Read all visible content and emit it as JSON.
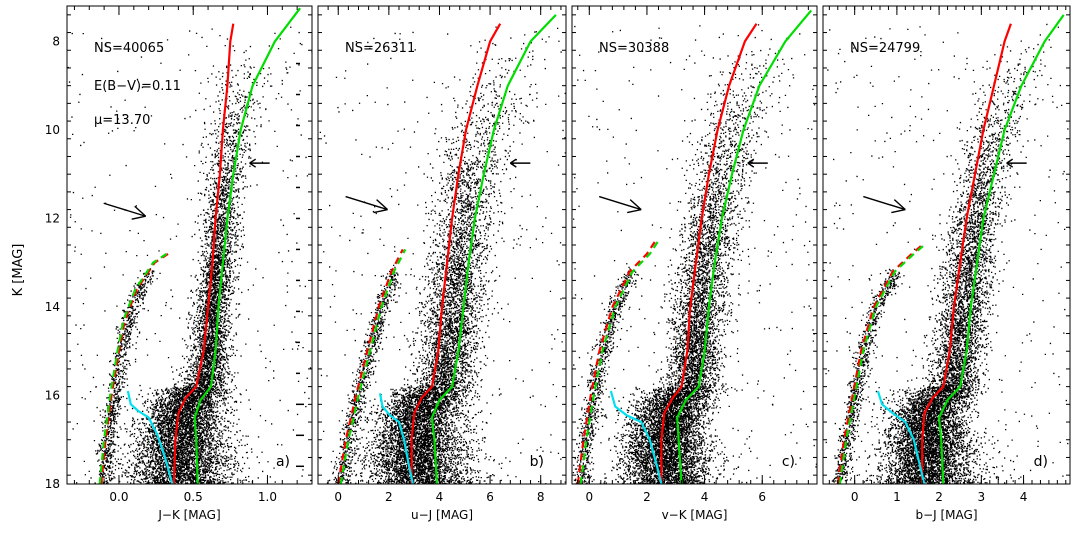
{
  "figure": {
    "ylabel": "K [MAG]",
    "ylim": [
      18,
      7.2
    ],
    "yticks": [
      8,
      10,
      12,
      14,
      16,
      18
    ]
  },
  "chart_data": [
    {
      "type": "scatter",
      "panel_label": "a)",
      "ns_text": "NS=40065",
      "ebv_text": "E(B−V)=0.11",
      "mu_text": "μ=13.70",
      "xlabel": "J−K [MAG]",
      "xlim": [
        -0.35,
        1.3
      ],
      "xticks": [
        0.0,
        0.5,
        1.0
      ],
      "xtick_labels": [
        "0.0",
        "0.5",
        "1.0"
      ],
      "series": [
        {
          "name": "RGB ridge (red)",
          "color": "#ff0000",
          "points": [
            [
              0.37,
              18.0
            ],
            [
              0.38,
              17.0
            ],
            [
              0.4,
              16.4
            ],
            [
              0.45,
              16.05
            ],
            [
              0.52,
              15.8
            ],
            [
              0.57,
              15.0
            ],
            [
              0.6,
              14.0
            ],
            [
              0.63,
              13.0
            ],
            [
              0.65,
              12.0
            ],
            [
              0.68,
              11.0
            ],
            [
              0.7,
              10.0
            ],
            [
              0.73,
              9.0
            ],
            [
              0.75,
              8.0
            ],
            [
              0.77,
              7.6
            ]
          ]
        },
        {
          "name": "RGB ridge (green)",
          "color": "#00dd00",
          "points": [
            [
              0.53,
              18.0
            ],
            [
              0.52,
              17.0
            ],
            [
              0.51,
              16.5
            ],
            [
              0.55,
              16.1
            ],
            [
              0.62,
              15.8
            ],
            [
              0.65,
              15.0
            ],
            [
              0.67,
              14.0
            ],
            [
              0.7,
              13.0
            ],
            [
              0.73,
              12.0
            ],
            [
              0.77,
              11.0
            ],
            [
              0.82,
              10.0
            ],
            [
              0.9,
              9.0
            ],
            [
              1.05,
              8.0
            ],
            [
              1.22,
              7.25
            ]
          ]
        },
        {
          "name": "HB red (dashed)",
          "color": "#ff0000",
          "dashed": true,
          "points": [
            [
              -0.12,
              18.0
            ],
            [
              -0.09,
              17.0
            ],
            [
              -0.05,
              16.0
            ],
            [
              0.0,
              15.0
            ],
            [
              0.04,
              14.3
            ],
            [
              0.12,
              13.6
            ],
            [
              0.24,
              13.0
            ],
            [
              0.33,
              12.8
            ]
          ]
        },
        {
          "name": "HB green (dashed)",
          "color": "#00dd00",
          "dashed": true,
          "points": [
            [
              -0.13,
              18.0
            ],
            [
              -0.1,
              17.0
            ],
            [
              -0.06,
              16.0
            ],
            [
              -0.01,
              15.0
            ],
            [
              0.03,
              14.3
            ],
            [
              0.11,
              13.6
            ],
            [
              0.23,
              13.0
            ],
            [
              0.32,
              12.8
            ]
          ]
        },
        {
          "name": "Subgiant (cyan)",
          "color": "#00e0f0",
          "points": [
            [
              0.06,
              15.9
            ],
            [
              0.08,
              16.2
            ],
            [
              0.13,
              16.35
            ],
            [
              0.2,
              16.5
            ],
            [
              0.26,
              16.9
            ],
            [
              0.31,
              17.4
            ],
            [
              0.36,
              18.0
            ]
          ]
        }
      ],
      "arrow_big": [
        0.18,
        11.95
      ],
      "arrow_small": [
        0.88,
        10.75
      ]
    },
    {
      "type": "scatter",
      "panel_label": "b)",
      "ns_text": "NS=26311",
      "xlabel": "u−J [MAG]",
      "xlim": [
        -0.8,
        9.0
      ],
      "xticks": [
        0,
        2,
        4,
        6,
        8
      ],
      "xtick_labels": [
        "0",
        "2",
        "4",
        "6",
        "8"
      ],
      "series": [
        {
          "name": "RGB ridge (red)",
          "color": "#ff0000",
          "points": [
            [
              2.9,
              18.0
            ],
            [
              2.9,
              17.0
            ],
            [
              3.0,
              16.4
            ],
            [
              3.3,
              16.05
            ],
            [
              3.7,
              15.8
            ],
            [
              3.95,
              15.0
            ],
            [
              4.1,
              14.0
            ],
            [
              4.3,
              13.0
            ],
            [
              4.5,
              12.0
            ],
            [
              4.75,
              11.0
            ],
            [
              5.05,
              10.0
            ],
            [
              5.5,
              9.0
            ],
            [
              6.0,
              8.0
            ],
            [
              6.4,
              7.6
            ]
          ]
        },
        {
          "name": "RGB ridge (green)",
          "color": "#00dd00",
          "points": [
            [
              3.9,
              18.0
            ],
            [
              3.8,
              17.0
            ],
            [
              3.7,
              16.5
            ],
            [
              4.0,
              16.1
            ],
            [
              4.5,
              15.8
            ],
            [
              4.75,
              15.0
            ],
            [
              4.95,
              14.0
            ],
            [
              5.15,
              13.0
            ],
            [
              5.4,
              12.0
            ],
            [
              5.75,
              11.0
            ],
            [
              6.15,
              10.0
            ],
            [
              6.7,
              9.0
            ],
            [
              7.6,
              8.0
            ],
            [
              8.6,
              7.4
            ]
          ]
        },
        {
          "name": "HB red (dashed)",
          "color": "#ff0000",
          "dashed": true,
          "points": [
            [
              0.0,
              18.0
            ],
            [
              0.3,
              17.0
            ],
            [
              0.7,
              16.0
            ],
            [
              1.15,
              15.0
            ],
            [
              1.6,
              14.0
            ],
            [
              2.1,
              13.2
            ],
            [
              2.55,
              12.7
            ]
          ]
        },
        {
          "name": "HB green (dashed)",
          "color": "#00dd00",
          "dashed": true,
          "points": [
            [
              0.1,
              18.0
            ],
            [
              0.4,
              17.0
            ],
            [
              0.8,
              16.0
            ],
            [
              1.25,
              15.0
            ],
            [
              1.7,
              14.0
            ],
            [
              2.2,
              13.2
            ],
            [
              2.65,
              12.7
            ]
          ]
        },
        {
          "name": "Subgiant (cyan)",
          "color": "#00e0f0",
          "points": [
            [
              1.65,
              15.95
            ],
            [
              1.75,
              16.25
            ],
            [
              2.05,
              16.45
            ],
            [
              2.4,
              16.6
            ],
            [
              2.6,
              17.0
            ],
            [
              2.8,
              17.6
            ],
            [
              2.95,
              18.0
            ]
          ]
        }
      ],
      "arrow_big": [
        1.95,
        11.8
      ],
      "arrow_small": [
        6.8,
        10.75
      ]
    },
    {
      "type": "scatter",
      "panel_label": "c)",
      "ns_text": "NS=30388",
      "xlabel": "v−K [MAG]",
      "xlim": [
        -0.6,
        7.9
      ],
      "xticks": [
        0,
        2,
        4,
        6
      ],
      "xtick_labels": [
        "0",
        "2",
        "4",
        "6"
      ],
      "series": [
        {
          "name": "RGB ridge (red)",
          "color": "#ff0000",
          "points": [
            [
              2.5,
              18.0
            ],
            [
              2.5,
              17.0
            ],
            [
              2.6,
              16.4
            ],
            [
              2.9,
              16.05
            ],
            [
              3.2,
              15.8
            ],
            [
              3.4,
              15.0
            ],
            [
              3.5,
              14.0
            ],
            [
              3.7,
              13.0
            ],
            [
              3.9,
              12.0
            ],
            [
              4.15,
              11.0
            ],
            [
              4.45,
              10.0
            ],
            [
              4.85,
              9.0
            ],
            [
              5.4,
              8.0
            ],
            [
              5.8,
              7.6
            ]
          ]
        },
        {
          "name": "RGB ridge (green)",
          "color": "#00dd00",
          "points": [
            [
              3.2,
              18.0
            ],
            [
              3.1,
              17.0
            ],
            [
              3.05,
              16.5
            ],
            [
              3.35,
              16.1
            ],
            [
              3.8,
              15.8
            ],
            [
              4.0,
              15.0
            ],
            [
              4.15,
              14.0
            ],
            [
              4.35,
              13.0
            ],
            [
              4.6,
              12.0
            ],
            [
              4.95,
              11.0
            ],
            [
              5.35,
              10.0
            ],
            [
              5.9,
              9.0
            ],
            [
              6.8,
              8.0
            ],
            [
              7.7,
              7.3
            ]
          ]
        },
        {
          "name": "HB red (dashed)",
          "color": "#ff0000",
          "dashed": true,
          "points": [
            [
              -0.4,
              18.0
            ],
            [
              -0.2,
              17.0
            ],
            [
              0.05,
              16.0
            ],
            [
              0.35,
              15.0
            ],
            [
              0.8,
              14.0
            ],
            [
              1.4,
              13.2
            ],
            [
              2.0,
              12.8
            ],
            [
              2.3,
              12.5
            ]
          ]
        },
        {
          "name": "HB green (dashed)",
          "color": "#00dd00",
          "dashed": true,
          "points": [
            [
              -0.3,
              18.0
            ],
            [
              -0.1,
              17.0
            ],
            [
              0.15,
              16.0
            ],
            [
              0.45,
              15.0
            ],
            [
              0.9,
              14.0
            ],
            [
              1.5,
              13.2
            ],
            [
              2.1,
              12.8
            ],
            [
              2.4,
              12.5
            ]
          ]
        },
        {
          "name": "Subgiant (cyan)",
          "color": "#00e0f0",
          "points": [
            [
              0.75,
              15.9
            ],
            [
              0.9,
              16.25
            ],
            [
              1.3,
              16.45
            ],
            [
              1.8,
              16.6
            ],
            [
              2.1,
              17.0
            ],
            [
              2.35,
              17.6
            ],
            [
              2.5,
              18.0
            ]
          ]
        }
      ],
      "arrow_big": [
        1.8,
        11.8
      ],
      "arrow_small": [
        5.5,
        10.75
      ]
    },
    {
      "type": "scatter",
      "panel_label": "d)",
      "ns_text": "NS=24799",
      "xlabel": "b−J [MAG]",
      "xlim": [
        -0.75,
        5.1
      ],
      "xticks": [
        0,
        1,
        2,
        3,
        4
      ],
      "xtick_labels": [
        "0",
        "1",
        "2",
        "3",
        "4"
      ],
      "series": [
        {
          "name": "RGB ridge (red)",
          "color": "#ff0000",
          "points": [
            [
              1.6,
              18.0
            ],
            [
              1.6,
              17.0
            ],
            [
              1.65,
              16.4
            ],
            [
              1.85,
              16.05
            ],
            [
              2.1,
              15.8
            ],
            [
              2.25,
              15.0
            ],
            [
              2.35,
              14.0
            ],
            [
              2.5,
              13.0
            ],
            [
              2.65,
              12.0
            ],
            [
              2.85,
              11.0
            ],
            [
              3.05,
              10.0
            ],
            [
              3.3,
              9.0
            ],
            [
              3.55,
              8.0
            ],
            [
              3.7,
              7.6
            ]
          ]
        },
        {
          "name": "RGB ridge (green)",
          "color": "#00dd00",
          "points": [
            [
              2.1,
              18.0
            ],
            [
              2.05,
              17.0
            ],
            [
              2.0,
              16.5
            ],
            [
              2.2,
              16.1
            ],
            [
              2.5,
              15.8
            ],
            [
              2.65,
              15.0
            ],
            [
              2.75,
              14.0
            ],
            [
              2.9,
              13.0
            ],
            [
              3.05,
              12.0
            ],
            [
              3.3,
              11.0
            ],
            [
              3.55,
              10.0
            ],
            [
              3.95,
              9.0
            ],
            [
              4.5,
              8.0
            ],
            [
              4.95,
              7.4
            ]
          ]
        },
        {
          "name": "HB red (dashed)",
          "color": "#ff0000",
          "dashed": true,
          "points": [
            [
              -0.4,
              18.0
            ],
            [
              -0.25,
              17.0
            ],
            [
              -0.05,
              16.0
            ],
            [
              0.15,
              15.0
            ],
            [
              0.45,
              14.0
            ],
            [
              0.9,
              13.2
            ],
            [
              1.35,
              12.8
            ],
            [
              1.6,
              12.6
            ]
          ]
        },
        {
          "name": "HB green (dashed)",
          "color": "#00dd00",
          "dashed": true,
          "points": [
            [
              -0.35,
              18.0
            ],
            [
              -0.2,
              17.0
            ],
            [
              0.0,
              16.0
            ],
            [
              0.2,
              15.0
            ],
            [
              0.5,
              14.0
            ],
            [
              0.95,
              13.2
            ],
            [
              1.4,
              12.8
            ],
            [
              1.65,
              12.6
            ]
          ]
        },
        {
          "name": "Subgiant (cyan)",
          "color": "#00e0f0",
          "points": [
            [
              0.55,
              15.9
            ],
            [
              0.65,
              16.2
            ],
            [
              0.9,
              16.4
            ],
            [
              1.2,
              16.6
            ],
            [
              1.4,
              17.0
            ],
            [
              1.55,
              17.6
            ],
            [
              1.65,
              18.0
            ]
          ]
        }
      ],
      "arrow_big": [
        1.2,
        11.8
      ],
      "arrow_small": [
        3.6,
        10.75
      ]
    }
  ]
}
